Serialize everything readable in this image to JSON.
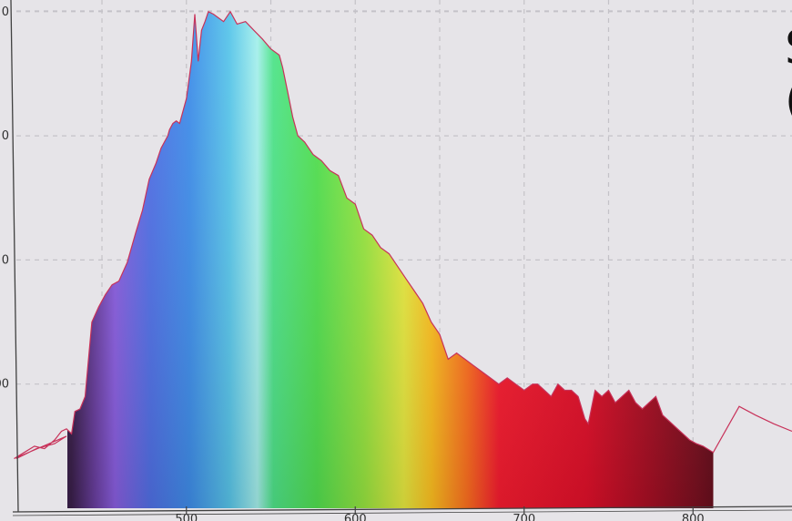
{
  "chart_data": {
    "type": "area",
    "title": "",
    "xlabel": "",
    "ylabel": "",
    "x_ticks": [
      {
        "value": 500,
        "label": "500"
      },
      {
        "value": 600,
        "label": "600"
      },
      {
        "value": 700,
        "label": "700"
      },
      {
        "value": 800,
        "label": "800"
      }
    ],
    "y_ticks": [
      {
        "value": 1,
        "label": "00"
      },
      {
        "value": 2,
        "label": "0"
      },
      {
        "value": 3,
        "label": "0"
      },
      {
        "value": 4,
        "label": "0"
      }
    ],
    "xlim": [
      398,
      812
    ],
    "ylim": [
      0,
      4.05
    ],
    "grid": true,
    "edge_glyphs": [
      "S",
      "("
    ],
    "colors": {
      "background": "#e6e4e8",
      "grid": "#c4c2c8",
      "axis": "#404040",
      "outline": "#c8325a"
    },
    "series": [
      {
        "x": [
          398,
          404,
          410,
          416,
          422,
          426,
          429,
          432,
          434,
          437,
          440,
          444,
          448,
          452,
          456,
          460,
          465,
          470,
          474,
          478,
          482,
          485,
          487,
          489,
          490,
          492,
          494,
          496,
          500,
          503,
          505,
          507,
          509,
          511,
          513,
          516,
          519,
          522,
          526,
          530,
          535,
          540,
          545,
          550,
          555,
          557,
          560,
          563,
          566,
          570,
          575,
          580,
          585,
          590,
          595,
          600,
          605,
          610,
          615,
          620,
          625,
          630,
          635,
          640,
          645,
          650,
          655,
          660,
          665,
          670,
          675,
          680,
          685,
          690,
          695,
          700,
          705,
          708,
          712,
          716,
          720,
          724,
          728,
          732,
          736,
          738,
          742,
          746,
          750,
          754,
          758,
          762,
          766,
          770,
          774,
          778,
          782,
          786,
          790,
          794,
          798,
          802,
          806,
          812
        ],
        "y": [
          0.4,
          0.45,
          0.5,
          0.48,
          0.55,
          0.62,
          0.64,
          0.6,
          0.78,
          0.8,
          0.9,
          1.5,
          1.62,
          1.72,
          1.8,
          1.83,
          1.98,
          2.22,
          2.4,
          2.65,
          2.78,
          2.9,
          2.95,
          3.0,
          3.05,
          3.1,
          3.12,
          3.1,
          3.3,
          3.6,
          3.98,
          3.6,
          3.85,
          3.92,
          4.0,
          3.98,
          3.95,
          3.92,
          4.0,
          3.9,
          3.92,
          3.85,
          3.78,
          3.7,
          3.65,
          3.55,
          3.35,
          3.15,
          3.0,
          2.95,
          2.85,
          2.8,
          2.72,
          2.68,
          2.5,
          2.45,
          2.25,
          2.2,
          2.1,
          2.05,
          1.95,
          1.85,
          1.75,
          1.65,
          1.5,
          1.4,
          1.2,
          1.25,
          1.2,
          1.15,
          1.1,
          1.05,
          1.0,
          1.05,
          1.0,
          0.95,
          1.0,
          1.0,
          0.95,
          0.9,
          1.0,
          0.95,
          0.95,
          0.9,
          0.72,
          0.68,
          0.95,
          0.9,
          0.95,
          0.85,
          0.9,
          0.95,
          0.85,
          0.8,
          0.85,
          0.9,
          0.75,
          0.7,
          0.65,
          0.6,
          0.55,
          0.52,
          0.5,
          0.45
        ]
      }
    ]
  }
}
